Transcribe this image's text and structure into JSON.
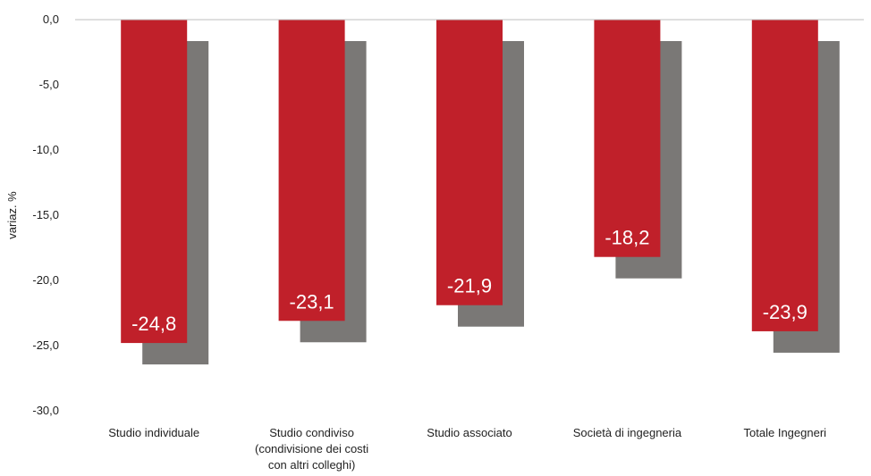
{
  "chart_data": {
    "type": "bar",
    "categories": [
      [
        "Studio individuale"
      ],
      [
        "Studio condiviso",
        "(condivisione dei costi",
        "con altri colleghi)"
      ],
      [
        "Studio associato"
      ],
      [
        "Società di ingegneria"
      ],
      [
        "Totale Ingegneri"
      ]
    ],
    "values": [
      -24.8,
      -23.1,
      -21.9,
      -18.2,
      -23.9
    ],
    "data_labels": [
      "-24,8",
      "-23,1",
      "-21,9",
      "-18,2",
      "-23,9"
    ],
    "ylabel": "variaz. %",
    "ylim": [
      -30,
      0
    ],
    "yticks": [
      0,
      -5,
      -10,
      -15,
      -20,
      -25,
      -30
    ],
    "ytick_labels": [
      "0,0",
      "-5,0",
      "-10,0",
      "-15,0",
      "-20,0",
      "-25,0",
      "-30,0"
    ],
    "grid": false,
    "colors": {
      "bar": "#c0202a",
      "shadow": "#7a7876",
      "axis": "#bfbfbf"
    }
  }
}
